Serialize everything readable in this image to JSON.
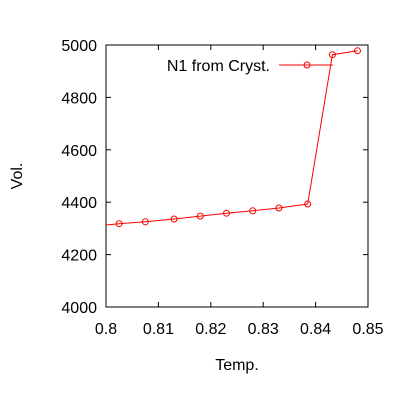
{
  "chart_data": {
    "type": "line",
    "title": "",
    "xlabel": "Temp.",
    "ylabel": "Vol.",
    "xlim": [
      0.8,
      0.85
    ],
    "ylim": [
      4000,
      5000
    ],
    "xticks": [
      "0.8",
      "0.81",
      "0.82",
      "0.83",
      "0.84",
      "0.85"
    ],
    "yticks": [
      "4000",
      "4200",
      "4400",
      "4600",
      "4800",
      "5000"
    ],
    "grid": false,
    "legend": {
      "placement": "top-left"
    },
    "series": [
      {
        "name": "N1 from Cryst.",
        "color": "#ff0000",
        "marker": "circle",
        "line": [
          [
            0.8,
            4313
          ],
          [
            0.8025,
            4318
          ],
          [
            0.8075,
            4325
          ],
          [
            0.813,
            4336
          ],
          [
            0.818,
            4347
          ],
          [
            0.823,
            4358
          ],
          [
            0.828,
            4367
          ],
          [
            0.833,
            4378
          ],
          [
            0.8385,
            4393
          ],
          [
            0.8432,
            4963
          ],
          [
            0.848,
            4978
          ]
        ],
        "points": [
          [
            0.8025,
            4318
          ],
          [
            0.8075,
            4325
          ],
          [
            0.813,
            4336
          ],
          [
            0.818,
            4347
          ],
          [
            0.823,
            4358
          ],
          [
            0.828,
            4367
          ],
          [
            0.833,
            4378
          ],
          [
            0.8385,
            4393
          ],
          [
            0.8432,
            4963
          ],
          [
            0.848,
            4978
          ]
        ]
      }
    ]
  }
}
